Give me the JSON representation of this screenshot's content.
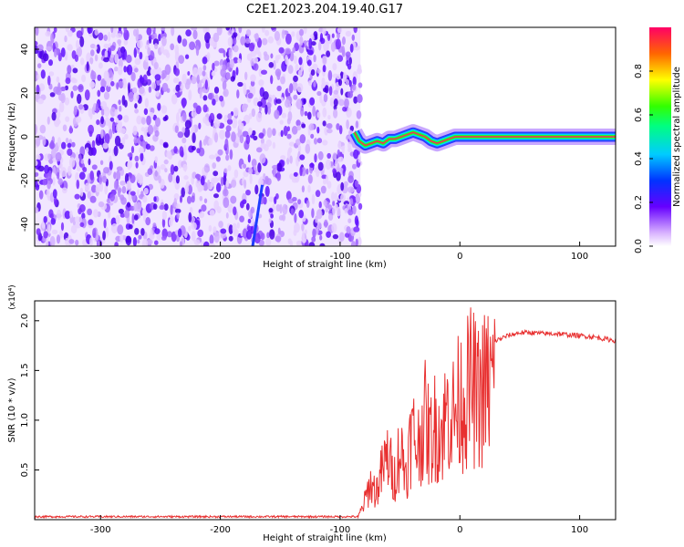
{
  "page": {
    "title": "C2E1.2023.204.19.40.G17"
  },
  "chart_data": [
    {
      "type": "heatmap",
      "xlabel": "Height of straight line (km)",
      "ylabel": "Frequency (Hz)",
      "xlim": [
        -355,
        130
      ],
      "ylim": [
        -50,
        50
      ],
      "x_ticks": [
        -300,
        -200,
        -100,
        0,
        100
      ],
      "x_tick_labels": [
        "-300",
        "-200",
        "-100",
        "0",
        "100"
      ],
      "y_ticks": [
        -40,
        -20,
        0,
        20,
        40
      ],
      "y_tick_labels": [
        "-40",
        "-20",
        "0",
        "20",
        "40"
      ],
      "noise_region_x": [
        -355,
        -83
      ],
      "signal_track": [
        [
          -88,
          2
        ],
        [
          -84,
          -2
        ],
        [
          -79,
          -4
        ],
        [
          -74,
          -3
        ],
        [
          -69,
          -2
        ],
        [
          -64,
          -3
        ],
        [
          -59,
          -1
        ],
        [
          -54,
          -1
        ],
        [
          -49,
          0
        ],
        [
          -44,
          1
        ],
        [
          -39,
          2
        ],
        [
          -34,
          1
        ],
        [
          -29,
          0
        ],
        [
          -24,
          -2
        ],
        [
          -19,
          -3
        ],
        [
          -14,
          -2
        ],
        [
          -9,
          -1
        ],
        [
          -4,
          0
        ],
        [
          0,
          0
        ],
        [
          10,
          0
        ],
        [
          50,
          0
        ],
        [
          100,
          0
        ],
        [
          130,
          0
        ]
      ],
      "colorbar": {
        "label": "Normalized spectral amplitude",
        "range": [
          0,
          1
        ],
        "ticks": [
          0.0,
          0.2,
          0.4,
          0.6,
          0.8
        ],
        "tick_labels": [
          "0.0",
          "0.2",
          "0.4",
          "0.6",
          "0.8"
        ]
      },
      "grid": false
    },
    {
      "type": "line",
      "xlabel": "Height of straight line (km)",
      "ylabel": "SNR (10 * v/v)",
      "y_multiplier": "(x10⁴)",
      "xlim": [
        -355,
        130
      ],
      "ylim": [
        0,
        2.2
      ],
      "x_ticks": [
        -300,
        -200,
        -100,
        0,
        100
      ],
      "x_tick_labels": [
        "-300",
        "-200",
        "-100",
        "0",
        "100"
      ],
      "y_ticks": [
        0.5,
        1.0,
        1.5,
        2.0
      ],
      "y_tick_labels": [
        "0.5",
        "1.0",
        "1.5",
        "2.0"
      ],
      "series": [
        {
          "color": "#e83030",
          "x": [
            -355,
            -300,
            -250,
            -200,
            -150,
            -100,
            -85,
            -80,
            -75,
            -70,
            -65,
            -60,
            -55,
            -50,
            -45,
            -40,
            -35,
            -30,
            -25,
            -20,
            -15,
            -10,
            -5,
            0,
            5,
            10,
            15,
            20,
            25,
            30,
            40,
            50,
            60,
            70,
            80,
            90,
            100,
            110,
            120,
            130
          ],
          "values": [
            0.03,
            0.03,
            0.03,
            0.03,
            0.03,
            0.03,
            0.03,
            0.2,
            0.45,
            0.35,
            0.6,
            0.8,
            0.5,
            0.9,
            0.6,
            1.1,
            0.9,
            1.3,
            1.0,
            1.2,
            1.1,
            1.4,
            1.3,
            1.5,
            1.55,
            1.7,
            1.5,
            1.65,
            1.7,
            1.8,
            1.85,
            1.88,
            1.88,
            1.87,
            1.87,
            1.86,
            1.85,
            1.84,
            1.82,
            1.8
          ]
        }
      ],
      "grid": false
    }
  ]
}
